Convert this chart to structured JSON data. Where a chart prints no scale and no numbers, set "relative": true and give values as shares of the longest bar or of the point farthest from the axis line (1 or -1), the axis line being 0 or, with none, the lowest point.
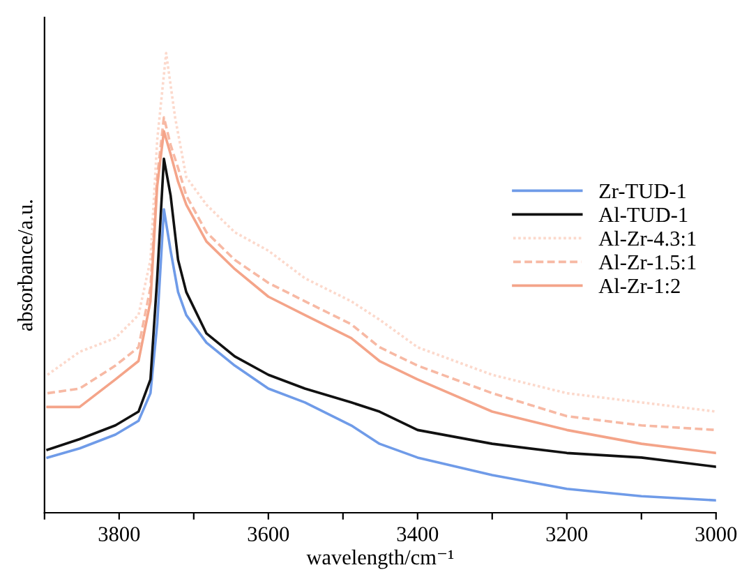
{
  "chart_data": {
    "type": "line",
    "relative": true,
    "xlabel": "wavelength/cm⁻¹",
    "ylabel": "absorbance/a.u.",
    "xlim": [
      3900,
      3000
    ],
    "xticks": [
      {
        "value": 3900,
        "label": null
      },
      3800,
      {
        "value": 3700,
        "label": null
      },
      3600,
      {
        "value": 3500,
        "label": null
      },
      3400,
      {
        "value": 3300,
        "label": null
      },
      3200,
      {
        "value": 3100,
        "label": null
      },
      3000
    ],
    "tick_labels": "x",
    "legend": "center right",
    "grid": false,
    "x": [
      3896,
      3853,
      3805,
      3774,
      3758,
      3749,
      3740,
      3731,
      3721,
      3710,
      3683,
      3645,
      3600,
      3551,
      3489,
      3451,
      3400,
      3300,
      3200,
      3100,
      3000
    ],
    "series": [
      {
        "name": "Zr-TUD-1",
        "color": "#6f9be8",
        "line_style": "solid",
        "values": [
          0.12,
          0.14,
          0.17,
          0.2,
          0.26,
          0.41,
          0.66,
          0.57,
          0.48,
          0.43,
          0.37,
          0.32,
          0.27,
          0.24,
          0.19,
          0.15,
          0.12,
          0.082,
          0.052,
          0.036,
          0.027
        ]
      },
      {
        "name": "Al-TUD-1",
        "color": "#111111",
        "line_style": "solid",
        "values": [
          0.137,
          0.16,
          0.19,
          0.22,
          0.29,
          0.51,
          0.77,
          0.69,
          0.55,
          0.48,
          0.39,
          0.34,
          0.3,
          0.27,
          0.24,
          0.22,
          0.18,
          0.15,
          0.13,
          0.12,
          0.1
        ]
      },
      {
        "name": "Al-Zr-4.3:1",
        "color": "#fcd9cc",
        "line_style": "dotted",
        "x": [
          3896,
          3853,
          3805,
          3774,
          3758,
          3749,
          3737,
          3725,
          3710,
          3683,
          3645,
          3600,
          3551,
          3489,
          3451,
          3400,
          3300,
          3200,
          3100,
          3000
        ],
        "values": [
          0.3,
          0.35,
          0.38,
          0.43,
          0.55,
          0.81,
          1.0,
          0.86,
          0.73,
          0.67,
          0.61,
          0.57,
          0.51,
          0.46,
          0.42,
          0.36,
          0.3,
          0.26,
          0.24,
          0.22
        ]
      },
      {
        "name": "Al-Zr-1.5:1",
        "color": "#f7b9a4",
        "line_style": "dashed",
        "values": [
          0.26,
          0.27,
          0.32,
          0.36,
          0.49,
          0.73,
          0.86,
          0.8,
          0.75,
          0.69,
          0.61,
          0.55,
          0.5,
          0.46,
          0.41,
          0.36,
          0.32,
          0.26,
          0.21,
          0.19,
          0.18
        ]
      },
      {
        "name": "Al-Zr-1:2",
        "color": "#f4a489",
        "line_style": "solid",
        "values": [
          0.23,
          0.23,
          0.29,
          0.33,
          0.46,
          0.71,
          0.83,
          0.78,
          0.72,
          0.67,
          0.59,
          0.53,
          0.47,
          0.43,
          0.38,
          0.33,
          0.29,
          0.22,
          0.18,
          0.15,
          0.13
        ]
      }
    ]
  }
}
